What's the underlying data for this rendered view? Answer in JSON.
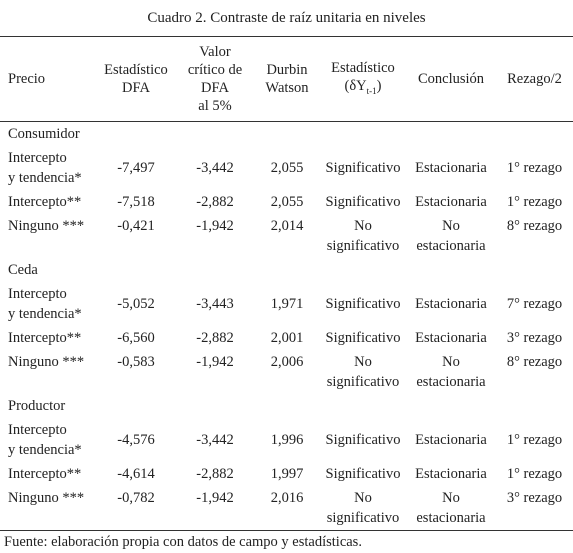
{
  "title": "Cuadro 2. Contraste de raíz unitaria en niveles",
  "header": [
    [
      "Precio"
    ],
    [
      "Estadístico",
      "DFA"
    ],
    [
      "Valor",
      "crítico de",
      "DFA",
      "al 5%"
    ],
    [
      "Durbin",
      "Watson"
    ],
    {
      "line": "Estadístico",
      "open": "(δY",
      "sub": "t-1",
      "close": ")"
    },
    [
      "Conclusión"
    ],
    [
      "Rezago/2"
    ]
  ],
  "groups": [
    {
      "name": "Consumidor",
      "rows": [
        [
          [
            "Intercepto",
            "y tendencia*"
          ],
          "-7,497",
          "-3,442",
          "2,055",
          "Significativo",
          "Estacionaria",
          "1° rezago"
        ],
        [
          "Intercepto**",
          "-7,518",
          "-2,882",
          "2,055",
          "Significativo",
          "Estacionaria",
          "1° rezago"
        ],
        [
          "Ninguno ***",
          "-0,421",
          "-1,942",
          "2,014",
          [
            "No",
            "significativo"
          ],
          [
            "No",
            "estacionaria"
          ],
          "8° rezago"
        ]
      ]
    },
    {
      "name": "Ceda",
      "rows": [
        [
          [
            "Intercepto",
            "y tendencia*"
          ],
          "-5,052",
          "-3,443",
          "1,971",
          "Significativo",
          "Estacionaria",
          "7° rezago"
        ],
        [
          "Intercepto**",
          "-6,560",
          "-2,882",
          "2,001",
          "Significativo",
          "Estacionaria",
          "3° rezago"
        ],
        [
          "Ninguno ***",
          "-0,583",
          "-1,942",
          "2,006",
          [
            "No",
            "significativo"
          ],
          [
            "No",
            "estacionaria"
          ],
          "8° rezago"
        ]
      ]
    },
    {
      "name": "Productor",
      "rows": [
        [
          [
            "Intercepto",
            "y tendencia*"
          ],
          "-4,576",
          "-3,442",
          "1,996",
          "Significativo",
          "Estacionaria",
          "1° rezago"
        ],
        [
          "Intercepto**",
          "-4,614",
          "-2,882",
          "1,997",
          "Significativo",
          "Estacionaria",
          "1° rezago"
        ],
        [
          "Ninguno ***",
          "-0,782",
          "-1,942",
          "2,016",
          [
            "No",
            "significativo"
          ],
          [
            "No",
            "estacionaria"
          ],
          "3° rezago"
        ]
      ]
    }
  ],
  "footer": "Fuente: elaboración propia con datos de campo y estadísticas."
}
